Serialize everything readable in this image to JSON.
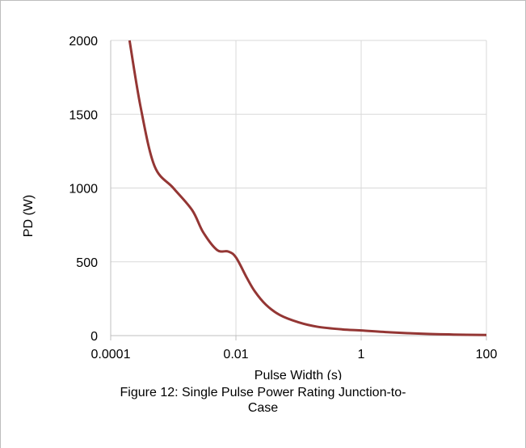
{
  "chart_data": {
    "type": "line",
    "xscale": "log",
    "xlim": [
      0.0001,
      100
    ],
    "ylim": [
      0,
      2000
    ],
    "xticks": [
      "0.0001",
      "0.01",
      "1",
      "100"
    ],
    "yticks": [
      "0",
      "500",
      "1000",
      "1500",
      "2000"
    ],
    "xlabel": "Pulse Width (s)",
    "ylabel": "PD (W)",
    "grid": true,
    "line_color": "#943634",
    "series": [
      {
        "points": [
          {
            "x": 0.0002,
            "y": 2000
          },
          {
            "x": 0.0003,
            "y": 1550
          },
          {
            "x": 0.0005,
            "y": 1150
          },
          {
            "x": 0.001,
            "y": 1000
          },
          {
            "x": 0.002,
            "y": 850
          },
          {
            "x": 0.003,
            "y": 700
          },
          {
            "x": 0.005,
            "y": 580
          },
          {
            "x": 0.0075,
            "y": 570
          },
          {
            "x": 0.01,
            "y": 530
          },
          {
            "x": 0.015,
            "y": 390
          },
          {
            "x": 0.02,
            "y": 300
          },
          {
            "x": 0.03,
            "y": 210
          },
          {
            "x": 0.05,
            "y": 140
          },
          {
            "x": 0.1,
            "y": 90
          },
          {
            "x": 0.2,
            "y": 60
          },
          {
            "x": 0.5,
            "y": 42
          },
          {
            "x": 1,
            "y": 35
          },
          {
            "x": 3,
            "y": 22
          },
          {
            "x": 10,
            "y": 12
          },
          {
            "x": 30,
            "y": 7
          },
          {
            "x": 100,
            "y": 4
          }
        ]
      }
    ]
  },
  "caption": {
    "line1": "Figure 12: Single Pulse Power Rating Junction-to-",
    "line2": "Case"
  }
}
